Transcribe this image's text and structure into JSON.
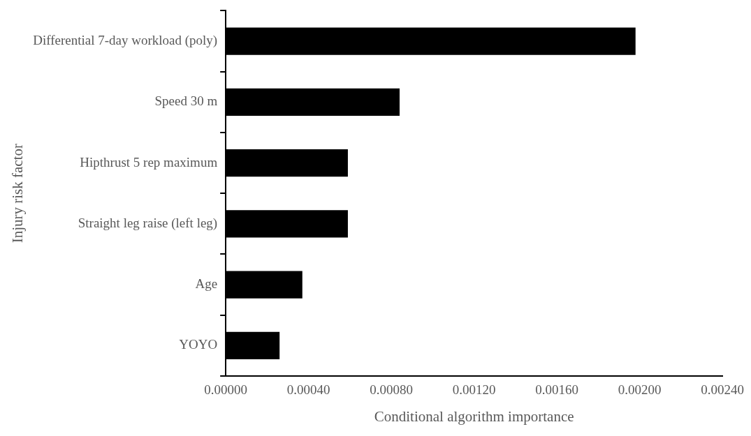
{
  "chart_data": {
    "type": "bar",
    "orientation": "horizontal",
    "xlabel": "Conditional algorithm importance",
    "ylabel": "Injury risk factor",
    "categories": [
      "Differential 7-day workload (poly)",
      "Speed 30 m",
      "Hipthrust 5 rep maximum",
      "Straight leg raise (left leg)",
      "Age",
      "YOYO"
    ],
    "values": [
      0.00198,
      0.00084,
      0.00059,
      0.00059,
      0.00037,
      0.00026
    ],
    "color": "#000000",
    "xlim": [
      0,
      0.0024
    ],
    "xticks": [
      {
        "value": 0,
        "label": "0.00000"
      },
      {
        "value": 0.0004,
        "label": "0.00040"
      },
      {
        "value": 0.0008,
        "label": "0.00080"
      },
      {
        "value": 0.0012,
        "label": "0.00120"
      },
      {
        "value": 0.0016,
        "label": "0.00160"
      },
      {
        "value": 0.002,
        "label": "0.00200"
      },
      {
        "value": 0.0024,
        "label": "0.00240"
      }
    ],
    "grid": false,
    "legend": false
  }
}
